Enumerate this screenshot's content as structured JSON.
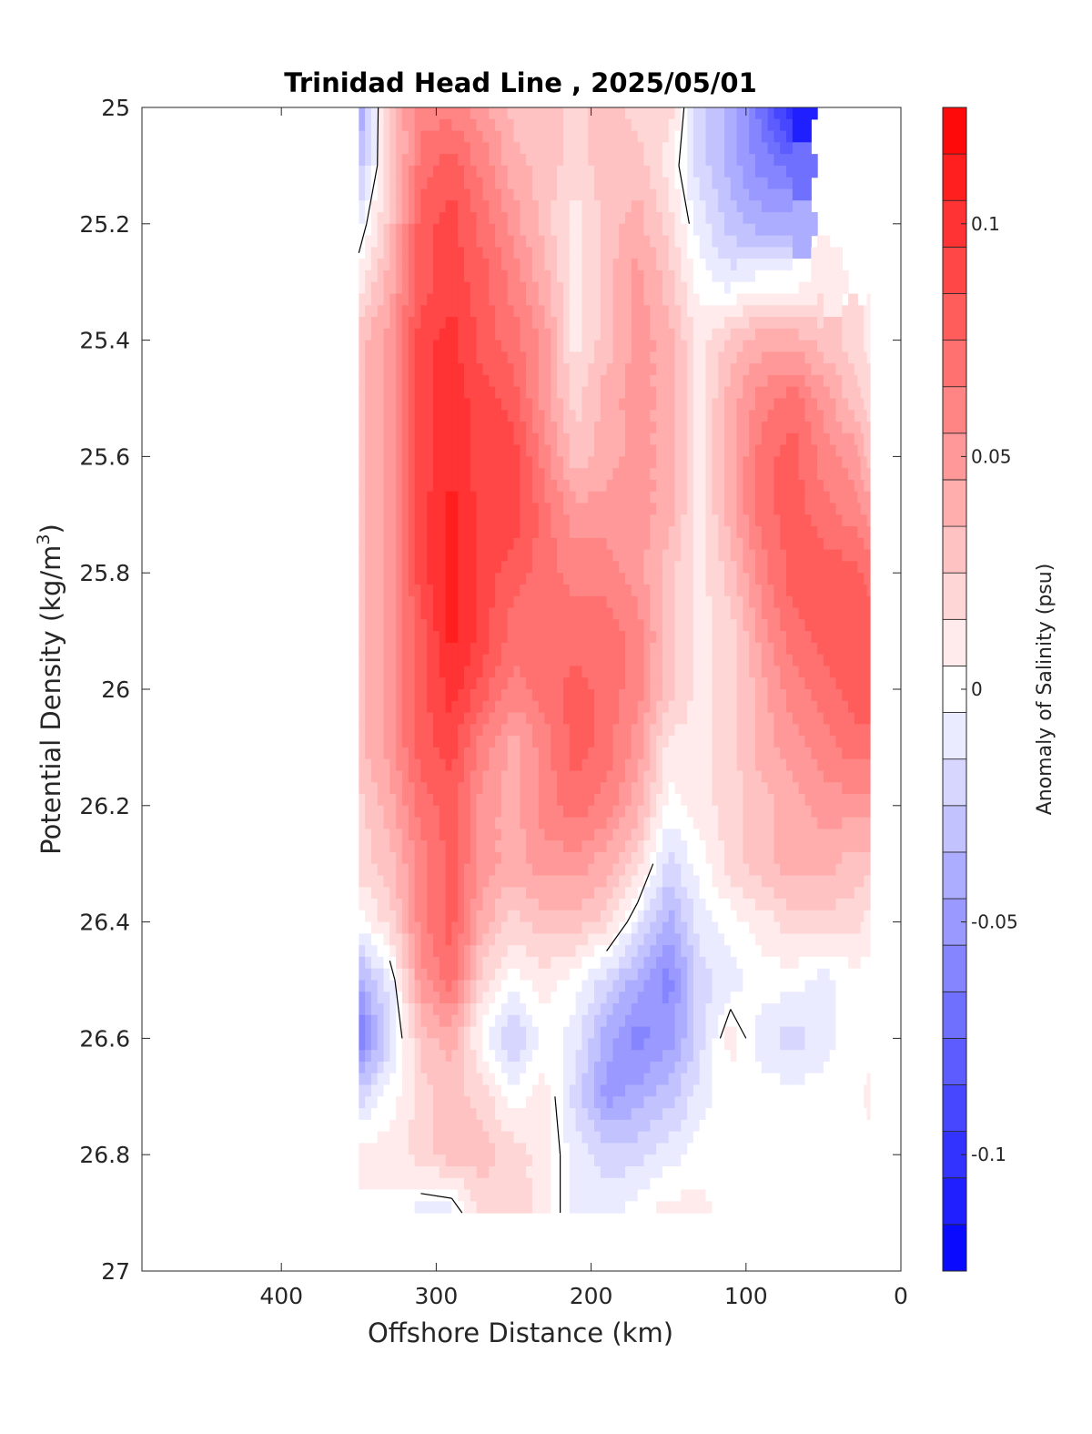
{
  "chart_data": {
    "type": "heatmap",
    "title": "Trinidad Head Line , 2025/05/01",
    "xlabel": "Offshore Distance (km)",
    "ylabel_main": "Potential Density (kg/m",
    "ylabel_sup": "3",
    "ylabel_close": ")",
    "colorbar_label": "Anomaly of Salinity (psu)",
    "xlim": [
      490,
      0
    ],
    "x_reversed": true,
    "ylim": [
      25,
      27
    ],
    "y_reversed": true,
    "x_ticks": [
      400,
      300,
      200,
      100,
      0
    ],
    "x_tick_labels": [
      "400",
      "300",
      "200",
      "100",
      "0"
    ],
    "y_ticks": [
      25,
      25.2,
      25.4,
      25.6,
      25.8,
      26,
      26.2,
      26.4,
      26.6,
      26.8,
      27
    ],
    "y_tick_labels": [
      "25",
      "25.2",
      "25.4",
      "25.6",
      "25.8",
      "26",
      "26.2",
      "26.4",
      "26.6",
      "26.8",
      "27"
    ],
    "colorbar_ticks": [
      0.1,
      0.05,
      0,
      -0.05,
      -0.1
    ],
    "colorbar_tick_labels": [
      "0.1",
      "0.05",
      "0",
      "-0.05",
      "-0.1"
    ],
    "colorbar_range": [
      -0.125,
      0.125
    ],
    "colorbar_levels": 25,
    "colormap": {
      "negative": "#0000ff",
      "zero": "#ffffff",
      "positive": "#ff0000"
    },
    "contour_levels": [
      0
    ],
    "grid": false,
    "data_extent": {
      "x": [
        350,
        20
      ],
      "y": [
        25,
        26.9
      ]
    },
    "x": [
      350,
      330,
      310,
      290,
      270,
      250,
      230,
      210,
      190,
      170,
      150,
      130,
      110,
      90,
      70,
      50,
      30,
      20
    ],
    "y": [
      25.0,
      25.1,
      25.2,
      25.3,
      25.4,
      25.5,
      25.6,
      25.7,
      25.8,
      25.9,
      26.0,
      26.1,
      26.2,
      26.3,
      26.4,
      26.5,
      26.6,
      26.7,
      26.8,
      26.9
    ],
    "z": [
      [
        -0.05,
        0.03,
        0.06,
        0.06,
        0.05,
        0.03,
        0.03,
        0.02,
        0.03,
        0.02,
        0.02,
        -0.02,
        -0.04,
        -0.07,
        -0.11,
        null,
        null,
        null
      ],
      [
        -0.03,
        0.02,
        0.07,
        0.08,
        0.06,
        0.04,
        0.03,
        0.02,
        0.03,
        0.03,
        0.01,
        -0.02,
        -0.04,
        -0.06,
        -0.07,
        null,
        null,
        null
      ],
      [
        -0.01,
        0.03,
        0.08,
        0.09,
        0.07,
        0.05,
        0.03,
        0.01,
        0.03,
        0.04,
        0.02,
        -0.01,
        -0.03,
        -0.04,
        -0.04,
        null,
        null,
        null
      ],
      [
        0.01,
        0.04,
        0.08,
        0.09,
        0.08,
        0.06,
        0.04,
        0.01,
        0.03,
        0.05,
        0.03,
        0.0,
        -0.01,
        0.0,
        0.0,
        0.01,
        null,
        null
      ],
      [
        0.03,
        0.05,
        0.09,
        0.1,
        0.08,
        0.07,
        0.05,
        0.01,
        0.03,
        0.05,
        0.04,
        0.01,
        0.03,
        0.04,
        0.04,
        0.03,
        0.02,
        0.01
      ],
      [
        0.03,
        0.05,
        0.09,
        0.1,
        0.09,
        0.08,
        0.05,
        0.02,
        0.04,
        0.05,
        0.04,
        0.01,
        0.04,
        0.06,
        0.07,
        0.05,
        0.03,
        0.02
      ],
      [
        0.03,
        0.05,
        0.09,
        0.1,
        0.09,
        0.09,
        0.06,
        0.03,
        0.04,
        0.05,
        0.04,
        0.01,
        0.04,
        0.07,
        0.08,
        0.06,
        0.05,
        0.03
      ],
      [
        0.03,
        0.05,
        0.09,
        0.11,
        0.09,
        0.09,
        0.07,
        0.05,
        0.05,
        0.05,
        0.04,
        0.01,
        0.04,
        0.07,
        0.08,
        0.07,
        0.06,
        0.05
      ],
      [
        0.03,
        0.05,
        0.09,
        0.11,
        0.09,
        0.08,
        0.07,
        0.06,
        0.06,
        0.05,
        0.03,
        0.01,
        0.03,
        0.06,
        0.08,
        0.08,
        0.08,
        0.07
      ],
      [
        0.03,
        0.05,
        0.08,
        0.11,
        0.09,
        0.07,
        0.07,
        0.07,
        0.07,
        0.06,
        0.03,
        0.01,
        0.02,
        0.05,
        0.07,
        0.08,
        0.08,
        0.08
      ],
      [
        0.03,
        0.05,
        0.08,
        0.1,
        0.08,
        0.06,
        0.07,
        0.08,
        0.07,
        0.06,
        0.03,
        0.01,
        0.02,
        0.04,
        0.06,
        0.07,
        0.08,
        0.08
      ],
      [
        0.03,
        0.05,
        0.08,
        0.09,
        0.06,
        0.04,
        0.06,
        0.08,
        0.07,
        0.05,
        0.01,
        0.01,
        0.02,
        0.04,
        0.05,
        0.06,
        0.07,
        0.07
      ],
      [
        0.02,
        0.04,
        0.07,
        0.08,
        0.05,
        0.04,
        0.06,
        0.07,
        0.06,
        0.04,
        0.0,
        0.01,
        0.02,
        0.03,
        0.04,
        0.05,
        0.05,
        0.05
      ],
      [
        0.02,
        0.03,
        0.06,
        0.08,
        0.05,
        0.04,
        0.05,
        0.05,
        0.04,
        0.02,
        -0.02,
        0.0,
        0.02,
        0.03,
        0.04,
        0.04,
        0.03,
        0.03
      ],
      [
        0.0,
        0.02,
        0.06,
        0.08,
        0.04,
        0.02,
        0.03,
        0.03,
        0.02,
        -0.01,
        -0.04,
        -0.01,
        0.0,
        0.01,
        0.02,
        0.02,
        0.02,
        0.01
      ],
      [
        -0.04,
        -0.01,
        0.05,
        0.07,
        0.02,
        0.0,
        0.01,
        0.0,
        -0.02,
        -0.04,
        -0.06,
        -0.02,
        -0.01,
        0.0,
        0.0,
        -0.01,
        0.0,
        0.0
      ],
      [
        -0.07,
        -0.02,
        0.03,
        0.04,
        0.0,
        -0.03,
        0.0,
        -0.01,
        -0.04,
        -0.06,
        -0.05,
        -0.02,
        0.01,
        -0.01,
        -0.02,
        -0.01,
        0.0,
        0.0
      ],
      [
        -0.02,
        0.0,
        0.02,
        0.03,
        0.02,
        0.0,
        0.01,
        -0.02,
        -0.05,
        -0.04,
        -0.03,
        -0.01,
        0.0,
        0.0,
        0.0,
        0.0,
        0.0,
        0.01
      ],
      [
        0.01,
        0.01,
        0.02,
        0.03,
        0.03,
        0.02,
        0.01,
        -0.01,
        -0.02,
        -0.02,
        -0.01,
        0.0,
        0.0,
        0.0,
        0.0,
        0.0,
        0.0,
        0.0
      ],
      [
        0.0,
        0.0,
        -0.01,
        -0.01,
        0.02,
        0.02,
        0.01,
        -0.01,
        -0.01,
        0.0,
        0.01,
        0.01,
        0.0,
        0.0,
        0.0,
        0.0,
        0.0,
        0.0
      ]
    ]
  }
}
